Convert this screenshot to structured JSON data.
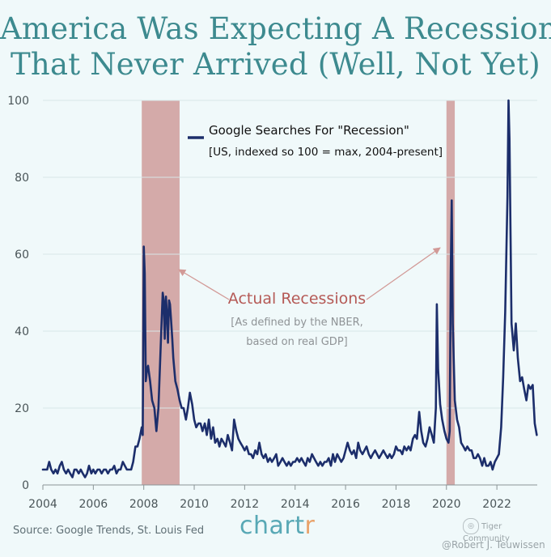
{
  "title_lines": [
    "America Was Expecting A Recession",
    "That Never Arrived (Well, Not Yet)"
  ],
  "source": "Source: Google Trends, St. Louis Fed",
  "brand": {
    "main": "chart",
    "accent": "r"
  },
  "watermark": {
    "logo_text": "Tiger Community",
    "credit": "@Robert J. Teuwissen"
  },
  "colors": {
    "background": "#f0f9fa",
    "line": "#1c2e6b",
    "recession": "#d4aaa9",
    "annotation": "#b55a56",
    "title": "#3d8a8f"
  },
  "chart_data": {
    "type": "line",
    "title": "America Was Expecting A Recession That Never Arrived (Well, Not Yet)",
    "xlim": [
      2004,
      2023.6
    ],
    "ylim": [
      0,
      100
    ],
    "x_ticks": [
      "2004",
      "2006",
      "2008",
      "2010",
      "2012",
      "2014",
      "2016",
      "2018",
      "2020",
      "2022"
    ],
    "y_ticks": [
      "0",
      "20",
      "40",
      "60",
      "80",
      "100"
    ],
    "legend": {
      "label": "Google Searches For \"Recession\"",
      "sublabel": "[US, indexed so 100 = max, 2004-present]"
    },
    "annotation": {
      "label": "Actual Recessions",
      "sub1": "[As defined by the NBER,",
      "sub2": "based on real GDP]"
    },
    "recessions": [
      {
        "start": 2007.92,
        "end": 2009.42
      },
      {
        "start": 2020.0,
        "end": 2020.33
      }
    ],
    "series": [
      {
        "name": "Google Searches For \"Recession\"",
        "points": [
          [
            2004.0,
            4
          ],
          [
            2004.17,
            4
          ],
          [
            2004.25,
            6
          ],
          [
            2004.33,
            4
          ],
          [
            2004.42,
            3
          ],
          [
            2004.5,
            4
          ],
          [
            2004.58,
            3
          ],
          [
            2004.67,
            5
          ],
          [
            2004.75,
            6
          ],
          [
            2004.83,
            4
          ],
          [
            2004.92,
            3
          ],
          [
            2005.0,
            4
          ],
          [
            2005.08,
            3
          ],
          [
            2005.17,
            2
          ],
          [
            2005.25,
            4
          ],
          [
            2005.33,
            4
          ],
          [
            2005.42,
            3
          ],
          [
            2005.5,
            4
          ],
          [
            2005.58,
            3
          ],
          [
            2005.67,
            2
          ],
          [
            2005.75,
            3
          ],
          [
            2005.83,
            5
          ],
          [
            2005.92,
            3
          ],
          [
            2006.0,
            4
          ],
          [
            2006.08,
            3
          ],
          [
            2006.17,
            4
          ],
          [
            2006.25,
            4
          ],
          [
            2006.33,
            3
          ],
          [
            2006.42,
            4
          ],
          [
            2006.5,
            4
          ],
          [
            2006.58,
            3
          ],
          [
            2006.67,
            4
          ],
          [
            2006.75,
            4
          ],
          [
            2006.83,
            5
          ],
          [
            2006.92,
            3
          ],
          [
            2007.0,
            4
          ],
          [
            2007.08,
            4
          ],
          [
            2007.17,
            6
          ],
          [
            2007.25,
            5
          ],
          [
            2007.33,
            4
          ],
          [
            2007.42,
            4
          ],
          [
            2007.5,
            4
          ],
          [
            2007.58,
            6
          ],
          [
            2007.67,
            10
          ],
          [
            2007.75,
            10
          ],
          [
            2007.83,
            12
          ],
          [
            2007.92,
            15
          ],
          [
            2007.96,
            13
          ],
          [
            2008.0,
            62
          ],
          [
            2008.04,
            55
          ],
          [
            2008.08,
            27
          ],
          [
            2008.13,
            30
          ],
          [
            2008.17,
            31
          ],
          [
            2008.25,
            27
          ],
          [
            2008.33,
            22
          ],
          [
            2008.42,
            20
          ],
          [
            2008.5,
            14
          ],
          [
            2008.58,
            20
          ],
          [
            2008.67,
            36
          ],
          [
            2008.75,
            50
          ],
          [
            2008.79,
            48
          ],
          [
            2008.83,
            38
          ],
          [
            2008.88,
            49
          ],
          [
            2008.92,
            44
          ],
          [
            2008.96,
            37
          ],
          [
            2009.0,
            48
          ],
          [
            2009.04,
            47
          ],
          [
            2009.08,
            43
          ],
          [
            2009.13,
            38
          ],
          [
            2009.17,
            33
          ],
          [
            2009.25,
            27
          ],
          [
            2009.33,
            25
          ],
          [
            2009.42,
            22
          ],
          [
            2009.5,
            20
          ],
          [
            2009.58,
            20
          ],
          [
            2009.67,
            17
          ],
          [
            2009.75,
            20
          ],
          [
            2009.83,
            24
          ],
          [
            2009.92,
            21
          ],
          [
            2010.0,
            17
          ],
          [
            2010.08,
            15
          ],
          [
            2010.17,
            16
          ],
          [
            2010.25,
            16
          ],
          [
            2010.33,
            14
          ],
          [
            2010.42,
            16
          ],
          [
            2010.5,
            13
          ],
          [
            2010.58,
            17
          ],
          [
            2010.67,
            12
          ],
          [
            2010.75,
            15
          ],
          [
            2010.83,
            11
          ],
          [
            2010.92,
            12
          ],
          [
            2011.0,
            10
          ],
          [
            2011.08,
            12
          ],
          [
            2011.17,
            11
          ],
          [
            2011.25,
            10
          ],
          [
            2011.33,
            13
          ],
          [
            2011.42,
            11
          ],
          [
            2011.5,
            9
          ],
          [
            2011.58,
            17
          ],
          [
            2011.67,
            14
          ],
          [
            2011.75,
            12
          ],
          [
            2011.83,
            11
          ],
          [
            2011.92,
            10
          ],
          [
            2012.0,
            9
          ],
          [
            2012.08,
            10
          ],
          [
            2012.17,
            8
          ],
          [
            2012.25,
            8
          ],
          [
            2012.33,
            7
          ],
          [
            2012.42,
            9
          ],
          [
            2012.5,
            8
          ],
          [
            2012.58,
            11
          ],
          [
            2012.67,
            8
          ],
          [
            2012.75,
            7
          ],
          [
            2012.83,
            8
          ],
          [
            2012.92,
            6
          ],
          [
            2013.0,
            7
          ],
          [
            2013.08,
            6
          ],
          [
            2013.17,
            7
          ],
          [
            2013.25,
            8
          ],
          [
            2013.33,
            5
          ],
          [
            2013.42,
            6
          ],
          [
            2013.5,
            7
          ],
          [
            2013.58,
            6
          ],
          [
            2013.67,
            5
          ],
          [
            2013.75,
            6
          ],
          [
            2013.83,
            5
          ],
          [
            2013.92,
            6
          ],
          [
            2014.0,
            6
          ],
          [
            2014.08,
            7
          ],
          [
            2014.17,
            6
          ],
          [
            2014.25,
            7
          ],
          [
            2014.33,
            6
          ],
          [
            2014.42,
            5
          ],
          [
            2014.5,
            7
          ],
          [
            2014.58,
            6
          ],
          [
            2014.67,
            8
          ],
          [
            2014.75,
            7
          ],
          [
            2014.83,
            6
          ],
          [
            2014.92,
            5
          ],
          [
            2015.0,
            6
          ],
          [
            2015.08,
            5
          ],
          [
            2015.17,
            6
          ],
          [
            2015.25,
            6
          ],
          [
            2015.33,
            7
          ],
          [
            2015.42,
            5
          ],
          [
            2015.5,
            8
          ],
          [
            2015.58,
            6
          ],
          [
            2015.67,
            8
          ],
          [
            2015.75,
            7
          ],
          [
            2015.83,
            6
          ],
          [
            2015.92,
            7
          ],
          [
            2016.0,
            9
          ],
          [
            2016.08,
            11
          ],
          [
            2016.17,
            9
          ],
          [
            2016.25,
            8
          ],
          [
            2016.33,
            9
          ],
          [
            2016.42,
            7
          ],
          [
            2016.5,
            11
          ],
          [
            2016.58,
            9
          ],
          [
            2016.67,
            8
          ],
          [
            2016.75,
            9
          ],
          [
            2016.83,
            10
          ],
          [
            2016.92,
            8
          ],
          [
            2017.0,
            7
          ],
          [
            2017.08,
            8
          ],
          [
            2017.17,
            9
          ],
          [
            2017.25,
            8
          ],
          [
            2017.33,
            7
          ],
          [
            2017.42,
            8
          ],
          [
            2017.5,
            9
          ],
          [
            2017.58,
            8
          ],
          [
            2017.67,
            7
          ],
          [
            2017.75,
            8
          ],
          [
            2017.83,
            7
          ],
          [
            2017.92,
            8
          ],
          [
            2018.0,
            10
          ],
          [
            2018.08,
            9
          ],
          [
            2018.17,
            9
          ],
          [
            2018.25,
            8
          ],
          [
            2018.33,
            10
          ],
          [
            2018.42,
            9
          ],
          [
            2018.5,
            10
          ],
          [
            2018.58,
            9
          ],
          [
            2018.67,
            12
          ],
          [
            2018.75,
            13
          ],
          [
            2018.83,
            12
          ],
          [
            2018.92,
            19
          ],
          [
            2019.0,
            14
          ],
          [
            2019.08,
            11
          ],
          [
            2019.17,
            10
          ],
          [
            2019.25,
            12
          ],
          [
            2019.33,
            15
          ],
          [
            2019.42,
            13
          ],
          [
            2019.5,
            11
          ],
          [
            2019.58,
            20
          ],
          [
            2019.62,
            47
          ],
          [
            2019.67,
            30
          ],
          [
            2019.75,
            21
          ],
          [
            2019.83,
            17
          ],
          [
            2019.92,
            14
          ],
          [
            2020.0,
            12
          ],
          [
            2020.08,
            11
          ],
          [
            2020.13,
            14
          ],
          [
            2020.17,
            55
          ],
          [
            2020.21,
            74
          ],
          [
            2020.25,
            42
          ],
          [
            2020.33,
            22
          ],
          [
            2020.42,
            17
          ],
          [
            2020.5,
            15
          ],
          [
            2020.58,
            11
          ],
          [
            2020.67,
            10
          ],
          [
            2020.75,
            9
          ],
          [
            2020.83,
            10
          ],
          [
            2020.92,
            9
          ],
          [
            2021.0,
            9
          ],
          [
            2021.08,
            7
          ],
          [
            2021.17,
            7
          ],
          [
            2021.25,
            8
          ],
          [
            2021.33,
            7
          ],
          [
            2021.42,
            5
          ],
          [
            2021.5,
            7
          ],
          [
            2021.58,
            5
          ],
          [
            2021.67,
            5
          ],
          [
            2021.75,
            6
          ],
          [
            2021.83,
            4
          ],
          [
            2021.92,
            6
          ],
          [
            2022.0,
            7
          ],
          [
            2022.08,
            8
          ],
          [
            2022.17,
            15
          ],
          [
            2022.25,
            28
          ],
          [
            2022.33,
            45
          ],
          [
            2022.42,
            75
          ],
          [
            2022.46,
            100
          ],
          [
            2022.5,
            90
          ],
          [
            2022.54,
            65
          ],
          [
            2022.58,
            42
          ],
          [
            2022.67,
            35
          ],
          [
            2022.75,
            42
          ],
          [
            2022.83,
            33
          ],
          [
            2022.92,
            27
          ],
          [
            2023.0,
            28
          ],
          [
            2023.08,
            25
          ],
          [
            2023.17,
            22
          ],
          [
            2023.25,
            26
          ],
          [
            2023.33,
            25
          ],
          [
            2023.42,
            26
          ],
          [
            2023.5,
            16
          ],
          [
            2023.58,
            13
          ]
        ]
      }
    ]
  }
}
